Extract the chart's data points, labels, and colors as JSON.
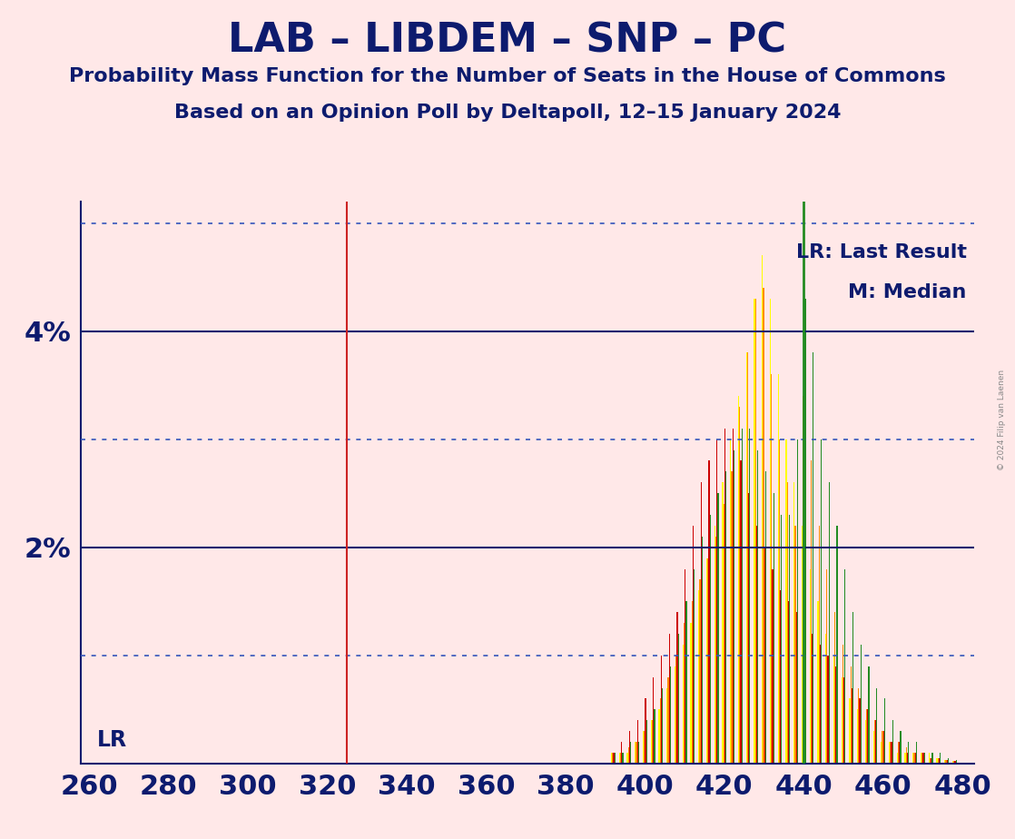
{
  "title": "LAB – LIBDEM – SNP – PC",
  "subtitle1": "Probability Mass Function for the Number of Seats in the House of Commons",
  "subtitle2": "Based on an Opinion Poll by Deltapoll, 12–15 January 2024",
  "copyright": "© 2024 Filip van Laenen",
  "background_color": "#FFE8E8",
  "title_color": "#0D1B6E",
  "title_fontsize": 32,
  "subtitle_fontsize": 16,
  "tick_color": "#0D1B6E",
  "tick_fontsize": 22,
  "lr_line_x": 325,
  "median_line_x": 440,
  "lr_label": "LR",
  "legend_lr": "LR: Last Result",
  "legend_m": "M: Median",
  "legend_color": "#0D1B6E",
  "legend_fontsize": 16,
  "solid_line_color": "#0D1B6E",
  "dotted_line_color": "#3355BB",
  "bar_colors": [
    "#FFFF00",
    "#FF8C00",
    "#CC0000",
    "#228B22"
  ],
  "xmin": 258,
  "xmax": 483,
  "ymin": 0.0,
  "ymax": 0.052,
  "yticks": [
    0.0,
    0.01,
    0.02,
    0.03,
    0.04,
    0.05
  ],
  "ytick_labels": [
    "",
    "",
    "2%",
    "",
    "4%",
    ""
  ],
  "solid_yticks": [
    0.02,
    0.04
  ],
  "dotted_yticks": [
    0.01,
    0.03,
    0.05
  ],
  "xticks": [
    260,
    280,
    300,
    320,
    340,
    360,
    380,
    400,
    420,
    440,
    460,
    480
  ],
  "seats": [
    392,
    394,
    396,
    398,
    400,
    402,
    404,
    406,
    408,
    410,
    412,
    414,
    416,
    418,
    420,
    422,
    424,
    426,
    428,
    430,
    432,
    434,
    436,
    438,
    440,
    442,
    444,
    446,
    448,
    450,
    452,
    454,
    456,
    458,
    460,
    462,
    464,
    466,
    468,
    470,
    472,
    474,
    476,
    478
  ],
  "pmf_yellow": [
    0.001,
    0.001,
    0.001,
    0.002,
    0.003,
    0.004,
    0.005,
    0.007,
    0.009,
    0.011,
    0.013,
    0.016,
    0.019,
    0.022,
    0.026,
    0.03,
    0.034,
    0.038,
    0.043,
    0.047,
    0.043,
    0.036,
    0.03,
    0.026,
    0.022,
    0.018,
    0.015,
    0.012,
    0.01,
    0.008,
    0.006,
    0.005,
    0.004,
    0.003,
    0.002,
    0.002,
    0.001,
    0.001,
    0.001,
    0.001,
    0.001,
    0.0005,
    0.0003,
    0.0002
  ],
  "pmf_orange": [
    0.001,
    0.001,
    0.0015,
    0.002,
    0.003,
    0.004,
    0.006,
    0.008,
    0.01,
    0.013,
    0.015,
    0.017,
    0.019,
    0.021,
    0.024,
    0.027,
    0.033,
    0.038,
    0.043,
    0.044,
    0.036,
    0.03,
    0.026,
    0.022,
    0.034,
    0.028,
    0.022,
    0.018,
    0.014,
    0.011,
    0.009,
    0.007,
    0.005,
    0.004,
    0.003,
    0.002,
    0.002,
    0.0015,
    0.001,
    0.001,
    0.0005,
    0.0005,
    0.0003,
    0.0002
  ],
  "pmf_red": [
    0.001,
    0.002,
    0.003,
    0.004,
    0.006,
    0.008,
    0.01,
    0.012,
    0.014,
    0.018,
    0.022,
    0.026,
    0.028,
    0.03,
    0.031,
    0.031,
    0.028,
    0.025,
    0.022,
    0.02,
    0.018,
    0.016,
    0.015,
    0.014,
    0.013,
    0.012,
    0.011,
    0.01,
    0.009,
    0.008,
    0.007,
    0.006,
    0.005,
    0.004,
    0.003,
    0.002,
    0.002,
    0.001,
    0.001,
    0.001,
    0.0005,
    0.0005,
    0.0003,
    0.0002
  ],
  "pmf_green": [
    0.001,
    0.001,
    0.002,
    0.002,
    0.004,
    0.005,
    0.007,
    0.009,
    0.012,
    0.015,
    0.018,
    0.021,
    0.023,
    0.025,
    0.027,
    0.029,
    0.031,
    0.031,
    0.029,
    0.027,
    0.025,
    0.023,
    0.023,
    0.03,
    0.043,
    0.038,
    0.03,
    0.026,
    0.022,
    0.018,
    0.014,
    0.011,
    0.009,
    0.007,
    0.006,
    0.004,
    0.003,
    0.002,
    0.002,
    0.001,
    0.001,
    0.001,
    0.0005,
    0.0003
  ]
}
